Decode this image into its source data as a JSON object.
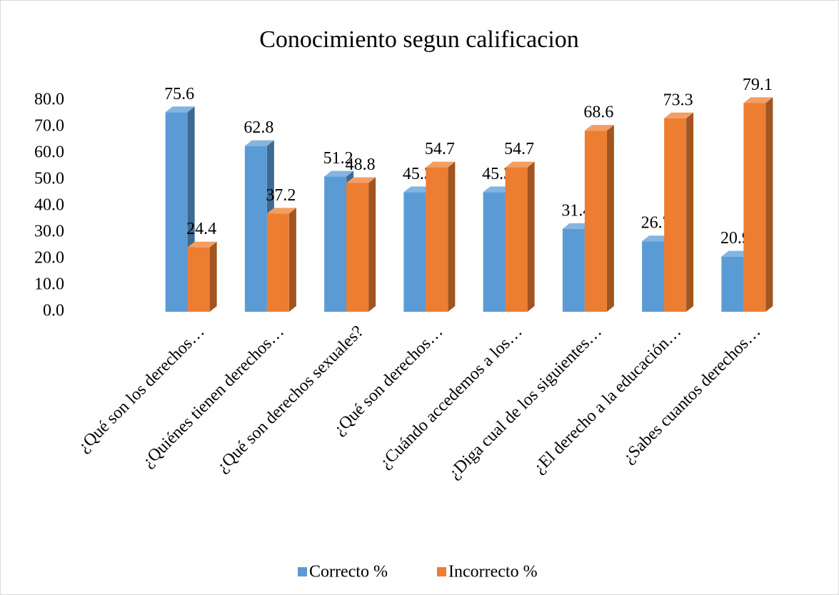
{
  "chart_data": {
    "type": "bar3d",
    "title": "Conocimiento segun calificacion",
    "categories": [
      "¿Qué son los derechos…",
      "¿Quiénes tienen derechos…",
      "¿Qué son derechos sexuales?",
      "¿Qué son derechos…",
      "¿Cuándo accedemos a los…",
      "¿Diga cual de los siguientes…",
      "¿El derecho a la educación…",
      "¿Sabes cuantos derechos…"
    ],
    "series": [
      {
        "name": "Correcto %",
        "color": "#5b9bd5",
        "values": [
          75.6,
          62.8,
          51.2,
          45.3,
          45.3,
          31.4,
          26.7,
          20.9
        ]
      },
      {
        "name": "Incorrecto %",
        "color": "#ed7d31",
        "values": [
          24.4,
          37.2,
          48.8,
          54.7,
          54.7,
          68.6,
          73.3,
          79.1
        ]
      }
    ],
    "ylim": [
      0,
      80
    ],
    "yticks": [
      {
        "value": 0,
        "label": "0.0"
      },
      {
        "value": 10,
        "label": "10.0"
      },
      {
        "value": 20,
        "label": "20.0"
      },
      {
        "value": 30,
        "label": "30.0"
      },
      {
        "value": 40,
        "label": "40.0"
      },
      {
        "value": 50,
        "label": "50.0"
      },
      {
        "value": 60,
        "label": "60.0"
      },
      {
        "value": 70,
        "label": "70.0"
      },
      {
        "value": 80,
        "label": "80.0"
      }
    ],
    "legend": "bottom"
  }
}
